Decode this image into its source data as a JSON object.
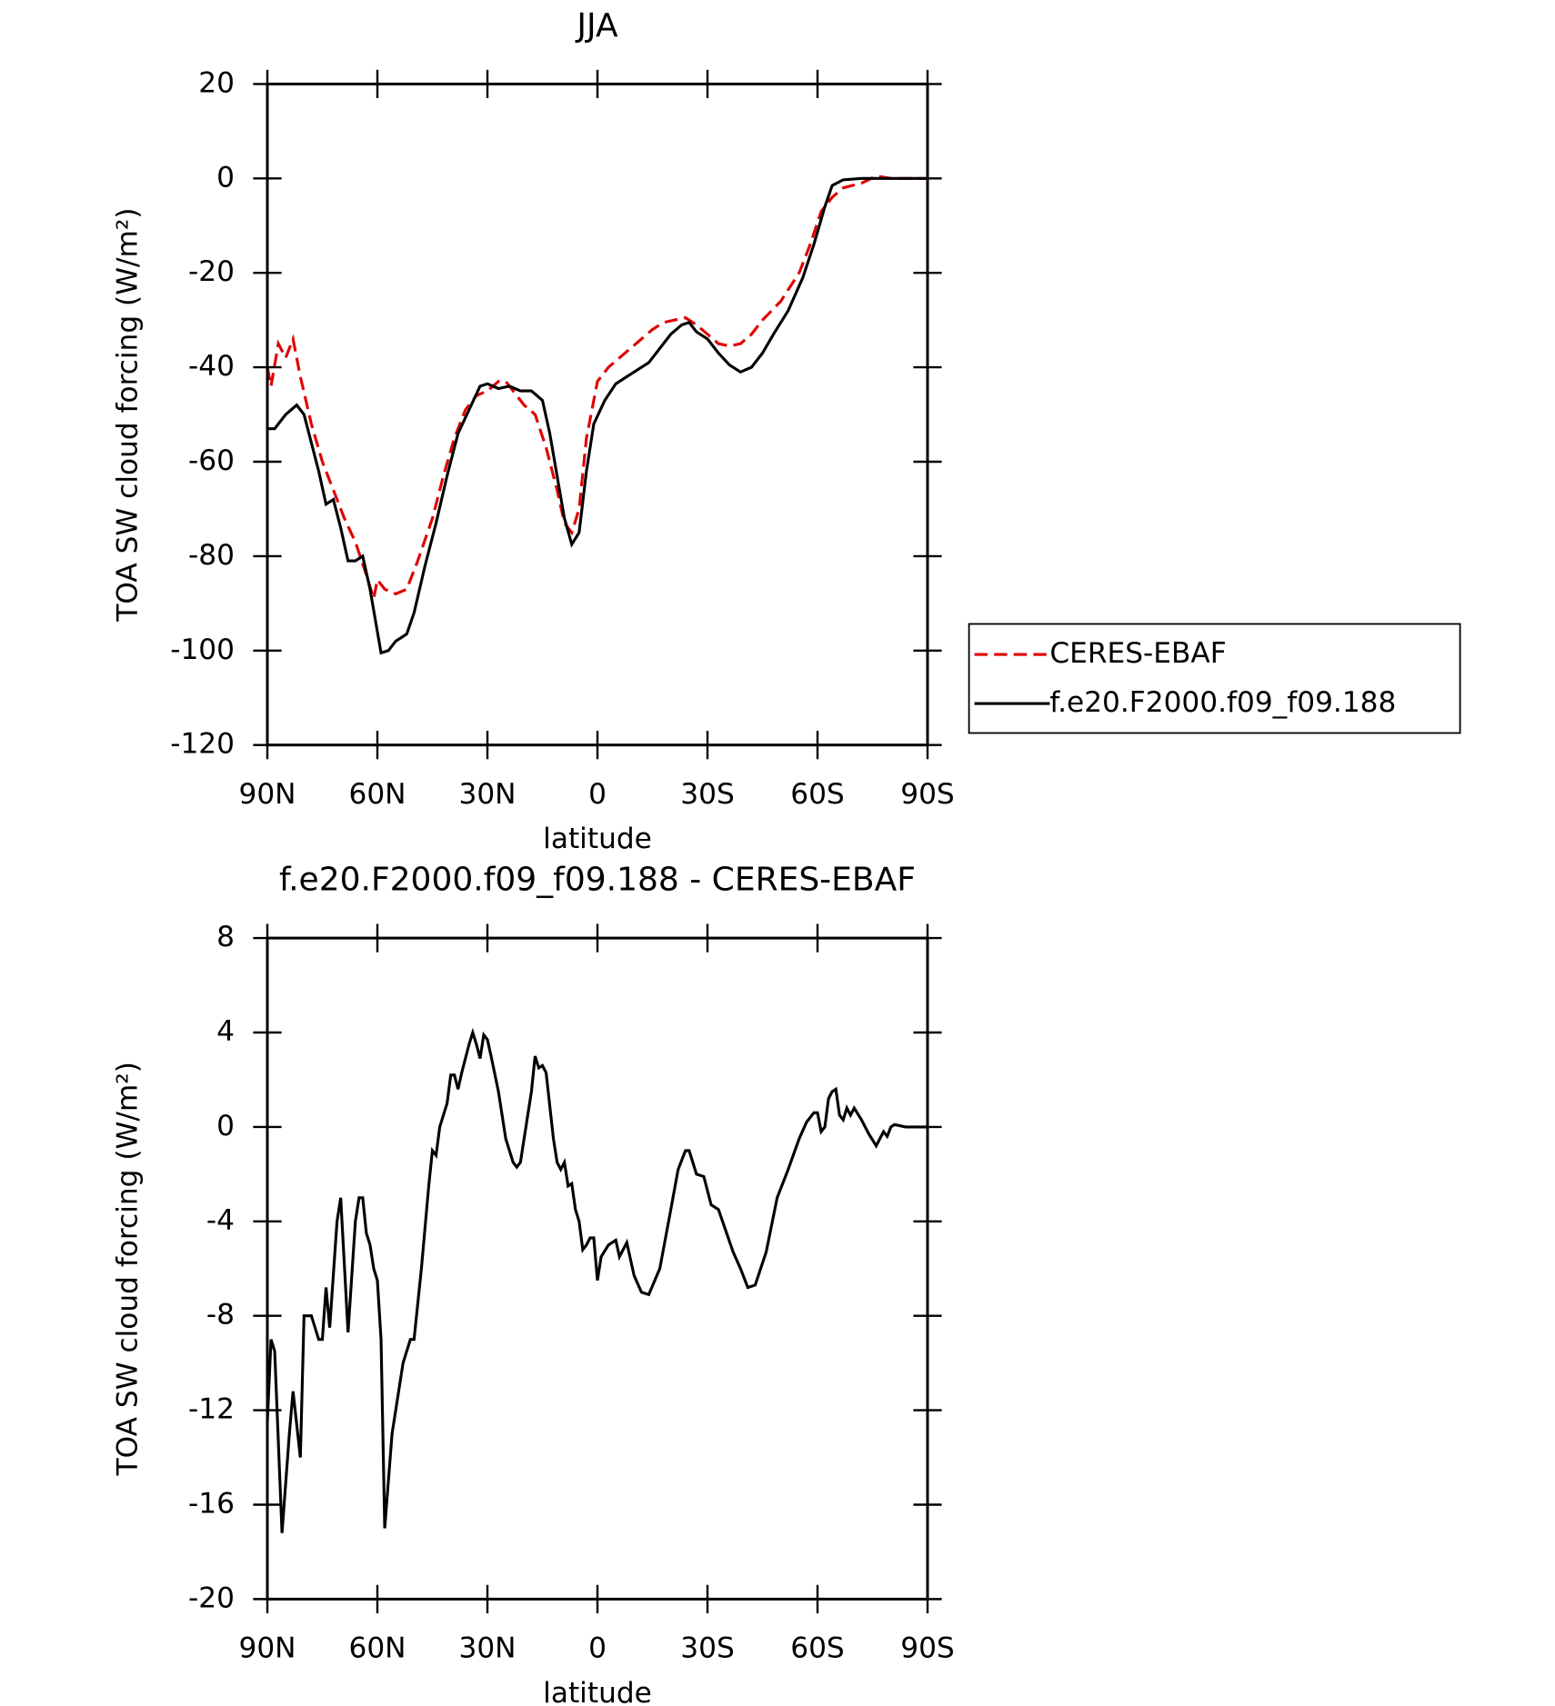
{
  "chart_data": [
    {
      "type": "line",
      "title": "JJA",
      "xlabel": "latitude",
      "ylabel": "TOA SW cloud forcing (W/m²)",
      "xlim": [
        90,
        -90
      ],
      "xticks": [
        {
          "value": 90,
          "label": "90N"
        },
        {
          "value": 60,
          "label": "60N"
        },
        {
          "value": 30,
          "label": "30N"
        },
        0,
        {
          "value": -30,
          "label": "30S"
        },
        {
          "value": -60,
          "label": "60S"
        },
        {
          "value": -90,
          "label": "90S"
        }
      ],
      "ylim": [
        -120,
        20
      ],
      "yticks": [
        -120,
        -100,
        -80,
        -60,
        -40,
        -20,
        0,
        20
      ],
      "legend": "right",
      "series": [
        {
          "name": "CERES-EBAF",
          "color": "#e00000",
          "dash": true,
          "x": [
            90,
            89,
            87,
            85,
            83,
            81,
            78,
            75,
            72,
            69,
            66,
            63,
            61,
            60,
            58,
            55,
            52,
            49,
            45,
            42,
            39,
            36,
            33,
            30,
            27,
            25,
            22,
            20,
            17,
            14,
            11,
            9,
            7,
            5,
            3,
            0,
            -3,
            -6,
            -9,
            -12,
            -15,
            -18,
            -21,
            -24,
            -27,
            -30,
            -33,
            -36,
            -39,
            -42,
            -45,
            -50,
            -55,
            -58,
            -61,
            -64,
            -67,
            -72,
            -76,
            -80,
            -90
          ],
          "values": [
            -40,
            -44,
            -35,
            -38,
            -34,
            -42,
            -52,
            -60,
            -66,
            -72,
            -77,
            -84,
            -89,
            -85,
            -87,
            -88,
            -87,
            -81,
            -72,
            -63,
            -55,
            -49,
            -46,
            -45,
            -43,
            -43,
            -46,
            -48,
            -50,
            -57,
            -66,
            -73,
            -75,
            -70,
            -55,
            -43,
            -40,
            -38,
            -36,
            -34,
            -32,
            -30.5,
            -30,
            -29.5,
            -31,
            -33,
            -35,
            -35.5,
            -35,
            -33,
            -30,
            -26,
            -20,
            -14,
            -7,
            -4,
            -2,
            -1,
            0.5,
            0,
            0
          ]
        },
        {
          "name": "f.e20.F2000.f09_f09.188",
          "color": "#000000",
          "dash": false,
          "x": [
            90,
            88,
            85,
            82,
            80,
            78,
            76,
            74,
            72,
            70,
            68,
            66,
            64,
            62,
            60,
            59,
            57,
            55,
            52,
            50,
            47,
            44,
            41,
            38,
            35,
            32,
            30,
            27,
            24,
            21,
            18,
            15,
            13,
            11,
            9,
            7,
            5,
            3,
            1,
            -2,
            -5,
            -8,
            -11,
            -14,
            -17,
            -20,
            -23,
            -25,
            -27,
            -30,
            -33,
            -36,
            -39,
            -42,
            -45,
            -48,
            -52,
            -56,
            -59,
            -62,
            -64,
            -67,
            -72,
            -90
          ],
          "values": [
            -53,
            -53,
            -50,
            -48,
            -50,
            -56,
            -62,
            -69,
            -68,
            -74,
            -81,
            -81,
            -80,
            -87,
            -96,
            -100.5,
            -100,
            -98,
            -96.5,
            -92,
            -82,
            -73,
            -63,
            -54,
            -49,
            -44,
            -43.5,
            -44.5,
            -44,
            -45,
            -45,
            -47,
            -54,
            -63,
            -72,
            -77.5,
            -75,
            -62,
            -52,
            -47,
            -43.5,
            -42,
            -40.5,
            -39,
            -36,
            -33,
            -31,
            -30.5,
            -32.5,
            -34,
            -37,
            -39.5,
            -41,
            -40,
            -37,
            -33,
            -28,
            -21,
            -14,
            -6,
            -1.5,
            -0.3,
            0,
            0
          ]
        }
      ]
    },
    {
      "type": "line",
      "title": "f.e20.F2000.f09_f09.188 - CERES-EBAF",
      "xlabel": "latitude",
      "ylabel": "TOA SW cloud forcing (W/m²)",
      "xlim": [
        90,
        -90
      ],
      "xticks": [
        {
          "value": 90,
          "label": "90N"
        },
        {
          "value": 60,
          "label": "60N"
        },
        {
          "value": 30,
          "label": "30N"
        },
        0,
        {
          "value": -30,
          "label": "30S"
        },
        {
          "value": -60,
          "label": "60S"
        },
        {
          "value": -90,
          "label": "90S"
        }
      ],
      "ylim": [
        -20,
        8
      ],
      "yticks": [
        -20,
        -16,
        -12,
        -8,
        -4,
        0,
        4,
        8
      ],
      "series": [
        {
          "color": "#000000",
          "dash": false,
          "x": [
            90,
            89,
            88,
            86,
            84,
            83,
            81,
            80,
            78,
            76,
            75,
            74,
            73,
            71,
            70,
            68,
            66,
            65,
            64,
            63,
            62,
            61,
            60,
            59,
            58,
            56,
            53,
            51,
            50,
            48,
            46,
            45,
            44,
            43,
            41,
            40,
            39,
            38,
            37,
            35,
            34,
            33,
            32,
            31,
            30,
            29,
            27,
            25,
            23,
            22,
            21,
            19,
            18,
            17,
            16,
            15,
            14,
            12,
            11,
            10,
            9,
            8,
            7,
            6,
            5,
            4,
            3,
            2,
            1,
            0,
            -1,
            -3,
            -5,
            -6,
            -8,
            -10,
            -12,
            -14,
            -17,
            -20,
            -22,
            -24,
            -25,
            -27,
            -29,
            -31,
            -33,
            -35,
            -37,
            -39,
            -41,
            -43,
            -46,
            -49,
            -52,
            -55,
            -57,
            -59,
            -60,
            -61,
            -62,
            -63,
            -64,
            -65,
            -66,
            -67,
            -68,
            -69,
            -70,
            -72,
            -74,
            -76,
            -77,
            -78,
            -79,
            -80,
            -81,
            -84,
            -90
          ],
          "values": [
            -12.5,
            -9,
            -9.5,
            -17.2,
            -13,
            -11.2,
            -14,
            -8,
            -8,
            -9,
            -9,
            -6.8,
            -8.5,
            -4,
            -3,
            -8.7,
            -4,
            -3,
            -3,
            -4.5,
            -5,
            -6,
            -6.5,
            -9,
            -17,
            -13,
            -10,
            -9,
            -9,
            -6,
            -2.5,
            -1,
            -1.2,
            0,
            1,
            2.2,
            2.2,
            1.6,
            2.3,
            3.5,
            4,
            3.5,
            2.9,
            3.9,
            3.7,
            3,
            1.5,
            -0.5,
            -1.5,
            -1.7,
            -1.5,
            0.5,
            1.5,
            3,
            2.5,
            2.6,
            2.3,
            -0.5,
            -1.5,
            -1.8,
            -1.5,
            -2.5,
            -2.4,
            -3.5,
            -4,
            -5.2,
            -5,
            -4.7,
            -4.7,
            -6.5,
            -5.5,
            -5,
            -4.8,
            -5.5,
            -4.9,
            -6.3,
            -7,
            -7.1,
            -6,
            -3.5,
            -1.8,
            -1,
            -1,
            -2,
            -2.1,
            -3.3,
            -3.5,
            -4.4,
            -5.3,
            -6,
            -6.8,
            -6.7,
            -5.3,
            -3,
            -1.8,
            -0.5,
            0.2,
            0.6,
            0.6,
            -0.2,
            0,
            1.2,
            1.5,
            1.6,
            0.5,
            0.3,
            0.8,
            0.5,
            0.8,
            0.3,
            -0.3,
            -0.8,
            -0.5,
            -0.2,
            -0.4,
            0,
            0.1,
            0,
            0
          ]
        }
      ]
    }
  ]
}
